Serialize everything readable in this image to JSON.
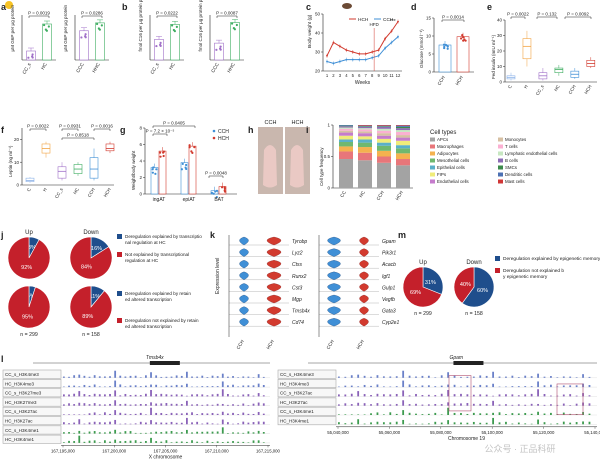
{
  "colors": {
    "black": "#222222",
    "cc": "#a070c8",
    "hc": "#3fae62",
    "cch": "#3f8fd6",
    "hch": "#d23a2e",
    "cch_light": "#8ec3ea",
    "hch_light": "#f0a3a3",
    "orange": "#f2a444",
    "blue_dark": "#1f4e8c",
    "red_dark": "#c4202b",
    "track_blue": "#6a80c8",
    "track_purple": "#8a62b8",
    "track_green": "#3d9b4f",
    "highlight": "#b05070"
  },
  "panels": {
    "a": {
      "letter": "a"
    },
    "b": {
      "letter": "b"
    },
    "c": {
      "letter": "c"
    },
    "d": {
      "letter": "d"
    },
    "e": {
      "letter": "e"
    },
    "f": {
      "letter": "f"
    },
    "g": {
      "letter": "g"
    },
    "h": {
      "letter": "h"
    },
    "i": {
      "letter": "i"
    },
    "j": {
      "letter": "j"
    },
    "k": {
      "letter": "k"
    },
    "l": {
      "letter": "l"
    },
    "m": {
      "letter": "m"
    }
  },
  "panel_h_labels": [
    "CCH",
    "HCH"
  ],
  "panel_i_legend_title": "Cell types",
  "panel_k_genes_left": [
    "Tyrobp",
    "Lyz2",
    "Ctss",
    "Runx2",
    "Cst3",
    "Mgp",
    "Tmsb4x",
    "Cd74"
  ],
  "panel_k_genes_right": [
    "Gpam",
    "Pik3r1",
    "Acacb",
    "Igf1",
    "Gulp1",
    "Vegfb",
    "Gata3",
    "Cyp2e1"
  ],
  "panel_l_tracks_left": [
    "CC_s_H3K4me3",
    "HC_H3K4me3",
    "CC_s_H3K27me3",
    "HC_H3K27me3",
    "CC_s_H3K27ac",
    "HC_H3K27ac",
    "CC_s_H3K4me1",
    "HC_H3K4me1"
  ],
  "panel_l_tracks_right": [
    "CC_s_H3K4me3",
    "HC_H3K4me3",
    "CC_s_H3K27ac",
    "HC_H3K27ac",
    "CC_s_H3K4me1",
    "HC_H3K4me1"
  ],
  "panel_l_gene_left": "Tmsb4x",
  "panel_l_gene_right": "Gpam",
  "panel_l_xticks_left": [
    "167,195,000",
    "167,200,000",
    "167,205,000",
    "167,210,000",
    "167,215,000"
  ],
  "panel_l_xticks_right": [
    "55,040,000",
    "55,060,000",
    "55,080,000",
    "55,100,000",
    "55,120,000",
    "55,140,000"
  ],
  "panel_l_xlabel_left": "X chromosome",
  "panel_l_xlabel_right": "Chromosome 19",
  "watermark": "公众号 · 正品科研",
  "chart_data": [
    {
      "id": "a1",
      "type": "bar",
      "categories": [
        "CC_s",
        "HC"
      ],
      "values": [
        0.7,
        2.8
      ],
      "ylabel": "μM G6P per μg protein",
      "pvalue": "P = 0.0019",
      "colors": [
        "#a070c8",
        "#3fae62"
      ]
    },
    {
      "id": "a2",
      "type": "bar",
      "categories": [
        "CCC",
        "HHC"
      ],
      "values": [
        2.6,
        3.3
      ],
      "ylabel": "μM G6P per μg protein",
      "pvalue": "P = 0.0286",
      "colors": [
        "#a070c8",
        "#3fae62"
      ]
    },
    {
      "id": "b1",
      "type": "bar",
      "categories": [
        "CC_s",
        "HC"
      ],
      "values": [
        0.55,
        0.95
      ],
      "ylabel": "fmol C16 per μg protein per h",
      "pvalue": "P = 0.0222",
      "colors": [
        "#a070c8",
        "#3fae62"
      ]
    },
    {
      "id": "b2",
      "type": "bar",
      "categories": [
        "CCC",
        "HHC"
      ],
      "values": [
        0.45,
        1.0
      ],
      "ylabel": "fmol C16 per μg protein per h",
      "pvalue": "P = 0.0087",
      "colors": [
        "#a070c8",
        "#3fae62"
      ]
    },
    {
      "id": "c",
      "type": "line",
      "x": [
        1,
        2,
        3,
        4,
        5,
        6,
        7,
        8,
        9,
        10,
        11,
        12
      ],
      "xlabel": "Weeks",
      "ylabel": "Body weight (g)",
      "ylim": [
        20,
        50
      ],
      "yticks": [
        20,
        30,
        40,
        50
      ],
      "annotation": "HFD",
      "significance": "***",
      "series": [
        {
          "name": "HCH",
          "values": [
            28,
            35,
            33,
            31,
            30,
            29,
            29,
            30,
            31,
            37,
            41,
            46
          ]
        },
        {
          "name": "CCH",
          "values": [
            25,
            24,
            25,
            26,
            26,
            26,
            26,
            27,
            28,
            32,
            35,
            38
          ]
        }
      ]
    },
    {
      "id": "d",
      "type": "bar",
      "categories": [
        "CCH",
        "HCH"
      ],
      "values": [
        7.5,
        9.8
      ],
      "ylabel": "Glucose (mmol l⁻¹)",
      "ylim": [
        0,
        15
      ],
      "yticks": [
        0,
        5,
        10,
        15
      ],
      "pvalue": "P = 0.0014"
    },
    {
      "id": "e",
      "type": "box",
      "categories": [
        "C",
        "H",
        "CC_s",
        "HC",
        "CCH",
        "HCH"
      ],
      "ylabel": "Fed insulin (mIU ml⁻¹)",
      "ylim": [
        0,
        40
      ],
      "yticks": [
        0,
        10,
        20,
        30,
        40
      ],
      "pvalues": [
        "P = 0.0022",
        "P = 0.132",
        "P = 0.0092"
      ],
      "boxes": [
        {
          "median": 3,
          "q1": 2,
          "q3": 4,
          "min": 1,
          "max": 6
        },
        {
          "median": 23,
          "q1": 15,
          "q3": 28,
          "min": 10,
          "max": 33
        },
        {
          "median": 4,
          "q1": 2,
          "q3": 6,
          "min": 1,
          "max": 9
        },
        {
          "median": 8,
          "q1": 6,
          "q3": 9,
          "min": 4,
          "max": 11
        },
        {
          "median": 5,
          "q1": 3,
          "q3": 7,
          "min": 2,
          "max": 9
        },
        {
          "median": 12,
          "q1": 10,
          "q3": 14,
          "min": 9,
          "max": 16
        }
      ]
    },
    {
      "id": "f",
      "type": "box",
      "categories": [
        "C",
        "H",
        "CC_s",
        "HC",
        "CCH",
        "HCH"
      ],
      "ylabel": "Leptin (ng ml⁻¹)",
      "ylim": [
        0,
        25
      ],
      "yticks": [
        0,
        10,
        20
      ],
      "pvalues": [
        "P = 0.0022",
        "P = 0.0931",
        "P = 0.0016",
        "P = 0.8518"
      ],
      "boxes": [
        {
          "median": 2,
          "q1": 1.5,
          "q3": 3,
          "min": 1,
          "max": 3.5
        },
        {
          "median": 16,
          "q1": 14,
          "q3": 18,
          "min": 12,
          "max": 19
        },
        {
          "median": 6,
          "q1": 3,
          "q3": 8,
          "min": 2,
          "max": 10
        },
        {
          "median": 7,
          "q1": 5,
          "q3": 9,
          "min": 4,
          "max": 10
        },
        {
          "median": 7,
          "q1": 3,
          "q3": 12,
          "min": 2,
          "max": 16
        },
        {
          "median": 16,
          "q1": 15,
          "q3": 18,
          "min": 14,
          "max": 19
        }
      ]
    },
    {
      "id": "g",
      "type": "bar",
      "categories": [
        "ingAT",
        "epiAT",
        "BAT"
      ],
      "ylabel": "Weight/body weight",
      "ylim": [
        0,
        8
      ],
      "yticks": [
        0,
        2,
        4,
        6,
        8
      ],
      "pvalues": [
        "P = 0.0405",
        "P = 7.2 × 10⁻⁵",
        "P = 0.0048"
      ],
      "series": [
        {
          "name": "CCH",
          "values": [
            3.2,
            3.8,
            0.4
          ]
        },
        {
          "name": "HCH",
          "values": [
            5.2,
            5.8,
            0.9
          ]
        }
      ]
    },
    {
      "id": "i",
      "type": "stacked-bar",
      "categories": [
        "CC",
        "HC",
        "CCH",
        "HCH"
      ],
      "ylabel": "Cell type frequency",
      "ylim": [
        0,
        1
      ],
      "yticks": [
        0,
        0.5,
        1
      ],
      "series": [
        {
          "name": "APCs",
          "values": [
            0.46,
            0.44,
            0.4,
            0.36
          ],
          "color": "#a3a3a3"
        },
        {
          "name": "Macrophages",
          "values": [
            0.12,
            0.12,
            0.1,
            0.1
          ],
          "color": "#e8767a"
        },
        {
          "name": "Adipocytes",
          "values": [
            0.08,
            0.09,
            0.09,
            0.09
          ],
          "color": "#f4b24f"
        },
        {
          "name": "Mesothelial cells",
          "values": [
            0.07,
            0.07,
            0.08,
            0.08
          ],
          "color": "#6fb86f"
        },
        {
          "name": "Epithelial cells",
          "values": [
            0.04,
            0.05,
            0.05,
            0.05
          ],
          "color": "#5ab0c9"
        },
        {
          "name": "FIPs",
          "values": [
            0.06,
            0.05,
            0.06,
            0.07
          ],
          "color": "#f0ec79"
        },
        {
          "name": "Endothelial cells",
          "values": [
            0.05,
            0.05,
            0.05,
            0.05
          ],
          "color": "#c57ccc"
        },
        {
          "name": "Monocytes",
          "values": [
            0.03,
            0.03,
            0.04,
            0.04
          ],
          "color": "#d7c0a3"
        },
        {
          "name": "T cells",
          "values": [
            0.03,
            0.03,
            0.04,
            0.05
          ],
          "color": "#fbb0d2"
        },
        {
          "name": "Lymphatic endothelial cells",
          "values": [
            0.02,
            0.02,
            0.03,
            0.03
          ],
          "color": "#c7e7c1"
        },
        {
          "name": "B cells",
          "values": [
            0.02,
            0.02,
            0.03,
            0.03
          ],
          "color": "#8c6bb5"
        },
        {
          "name": "SMCs",
          "values": [
            0.01,
            0.01,
            0.01,
            0.02
          ],
          "color": "#3c8a4b"
        },
        {
          "name": "Dendritic cells",
          "values": [
            0.01,
            0.01,
            0.01,
            0.02
          ],
          "color": "#4c70b3"
        },
        {
          "name": "Mast cells",
          "values": [
            0.0,
            0.01,
            0.01,
            0.01
          ],
          "color": "#d03636"
        }
      ]
    },
    {
      "id": "j_up_1",
      "type": "pie",
      "title": "Up",
      "labels": [
        "8%",
        "92%"
      ],
      "values": [
        8,
        92
      ]
    },
    {
      "id": "j_down_1",
      "type": "pie",
      "title": "Down",
      "labels": [
        "16%",
        "84%"
      ],
      "values": [
        16,
        84
      ]
    },
    {
      "id": "j_up_2",
      "type": "pie",
      "labels": [
        "5%",
        "95%"
      ],
      "values": [
        5,
        95
      ],
      "caption": "n = 299"
    },
    {
      "id": "j_down_2",
      "type": "pie",
      "labels": [
        "11%",
        "89%"
      ],
      "values": [
        11,
        89
      ],
      "caption": "n = 158"
    },
    {
      "id": "m_up",
      "type": "pie",
      "title": "Up",
      "labels": [
        "31%",
        "69%"
      ],
      "values": [
        31,
        69
      ],
      "caption": "n = 299"
    },
    {
      "id": "m_down",
      "type": "pie",
      "title": "Down",
      "labels": [
        "60%",
        "40%"
      ],
      "values": [
        60,
        40
      ],
      "caption": "n = 158"
    }
  ],
  "legends": {
    "c": [
      "HCH",
      "CCH"
    ],
    "g": [
      "CCH",
      "HCH"
    ],
    "j1": [
      "Deregulation explained by transcriptional regulation at HC",
      "Not explained by transcriptional regulation at HC"
    ],
    "j2": [
      "Deregulation explained by retained altered transcription",
      "Deregulation not explained by retained altered transcription"
    ],
    "m": [
      "Deregulation explained by epigenetic memory",
      "Deregulation not explained by epigenetic memory"
    ],
    "k_xlabels": [
      "CCH",
      "HCH"
    ],
    "k_ylabel": "Expression level"
  }
}
